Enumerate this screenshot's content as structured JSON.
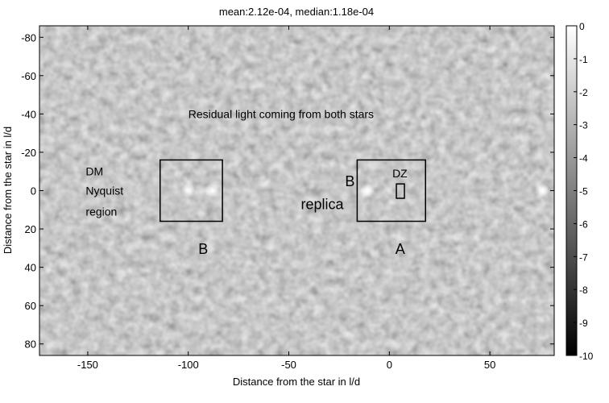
{
  "chart_data": {
    "type": "heatmap",
    "title": "mean:2.12e-04, median:1.18e-04",
    "xlabel": "Distance from the star in l/d",
    "ylabel": "Distance from the star in l/d",
    "xlim": [
      -174,
      82
    ],
    "ylim": [
      -86,
      86
    ],
    "y_reversed": true,
    "xticks": [
      -150,
      -100,
      -50,
      0,
      50
    ],
    "yticks": [
      -80,
      -60,
      -40,
      -20,
      0,
      20,
      40,
      60,
      80
    ],
    "colormap": "gray",
    "colorbar": {
      "range": [
        -10,
        0
      ],
      "ticks": [
        0,
        -1,
        -2,
        -3,
        -4,
        -5,
        -6,
        -7,
        -8,
        -9,
        -10
      ]
    },
    "background_level": -4.5,
    "bright_spots": [
      {
        "x": -100,
        "y": 0
      },
      {
        "x": -88,
        "y": 0
      },
      {
        "x": -11,
        "y": 0
      },
      {
        "x": 0,
        "y": 0,
        "faint": true
      },
      {
        "x": 76,
        "y": 0
      }
    ],
    "boxes": [
      {
        "name": "B",
        "x": [
          -114,
          -83
        ],
        "y": [
          -16,
          16
        ]
      },
      {
        "name": "A",
        "x": [
          -16,
          18
        ],
        "y": [
          -16,
          16
        ]
      },
      {
        "name": "DZ",
        "x": [
          3.5,
          7.5
        ],
        "y": [
          -3.5,
          4
        ]
      }
    ],
    "annotations": [
      {
        "text": "Residual light coming from both stars",
        "x": -100,
        "y": -40
      },
      {
        "text": "DM",
        "x": -151,
        "y": -10
      },
      {
        "text": "Nyquist",
        "x": -151,
        "y": 0
      },
      {
        "text": "region",
        "x": -151,
        "y": 11
      },
      {
        "text": "B",
        "x": -95,
        "y": 31
      },
      {
        "text": "B",
        "x": -22,
        "y": -4.5
      },
      {
        "text": "replica",
        "x": -44,
        "y": 7.5
      },
      {
        "text": "DZ",
        "x": 1.5,
        "y": -9
      },
      {
        "text": "A",
        "x": 3,
        "y": 31
      }
    ]
  }
}
